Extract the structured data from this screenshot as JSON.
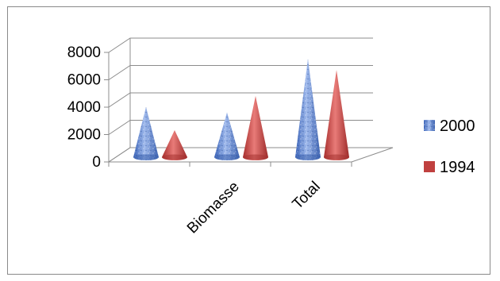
{
  "chart_data": {
    "type": "bar",
    "style": "3d-cone",
    "categories": [
      "",
      "Biomasse",
      "Total"
    ],
    "series": [
      {
        "name": "2000",
        "values": [
          3900,
          3500,
          7400
        ],
        "color": "#4f7fd0"
      },
      {
        "name": "1994",
        "values": [
          2200,
          4700,
          6600
        ],
        "color": "#c0403f"
      }
    ],
    "yticks": [
      0,
      2000,
      4000,
      6000,
      8000
    ],
    "ylim": [
      0,
      8000
    ],
    "grid": true,
    "legend": "right",
    "title": "",
    "xlabel": "",
    "ylabel": ""
  }
}
